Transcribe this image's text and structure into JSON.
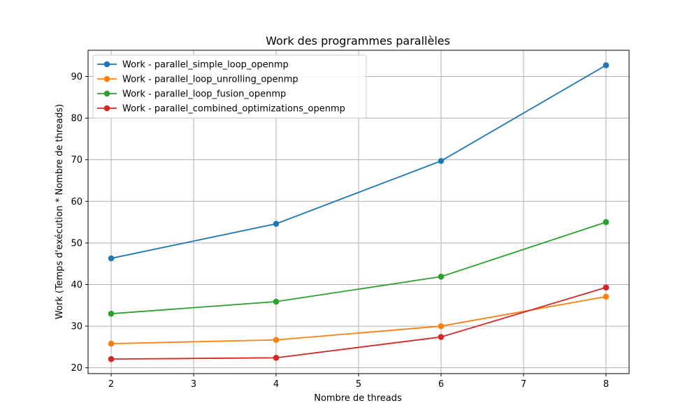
{
  "chart_data": {
    "type": "line",
    "title": "Work des programmes parallèles",
    "xlabel": "Nombre de threads",
    "ylabel": "Work (Temps d'exécution * Nombre de threads)",
    "xlim": [
      1.72,
      8.28
    ],
    "ylim": [
      18.6,
      96.3
    ],
    "xticks": [
      2,
      3,
      4,
      5,
      6,
      7,
      8
    ],
    "yticks": [
      20,
      30,
      40,
      50,
      60,
      70,
      80,
      90
    ],
    "grid": true,
    "legend_position": "top-left",
    "x": [
      2,
      4,
      6,
      8
    ],
    "series": [
      {
        "name": "Work - parallel_simple_loop_openmp",
        "color": "#1f77b4",
        "values": [
          46.3,
          54.6,
          69.7,
          92.7
        ]
      },
      {
        "name": "Work - parallel_loop_unrolling_openmp",
        "color": "#ff7f0e",
        "values": [
          25.8,
          26.7,
          30.0,
          37.1
        ]
      },
      {
        "name": "Work - parallel_loop_fusion_openmp",
        "color": "#2ca02c",
        "values": [
          33.0,
          35.9,
          41.9,
          55.0
        ]
      },
      {
        "name": "Work - parallel_combined_optimizations_openmp",
        "color": "#d62728",
        "values": [
          22.1,
          22.4,
          27.4,
          39.3
        ]
      }
    ]
  }
}
